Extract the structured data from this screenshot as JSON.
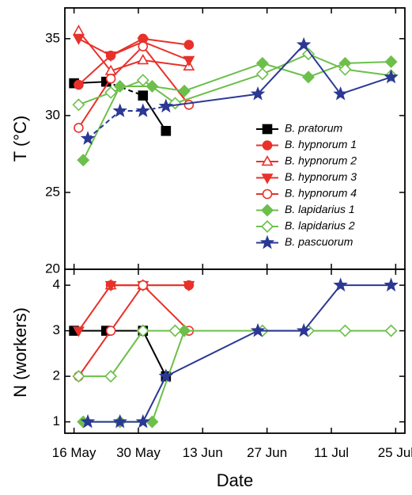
{
  "chart_data": {
    "type": "line",
    "xlabel": "Date",
    "x_ticks": [
      {
        "date": "2011-05-16",
        "label": "16 May"
      },
      {
        "date": "2011-05-30",
        "label": "30 May"
      },
      {
        "date": "2011-06-13",
        "label": "13 Jun"
      },
      {
        "date": "2011-06-27",
        "label": "27 Jun"
      },
      {
        "date": "2011-07-11",
        "label": "11 Jul"
      },
      {
        "date": "2011-07-25",
        "label": "25 Jul"
      }
    ],
    "xlim": [
      "2011-05-14",
      "2011-07-27"
    ],
    "panels": [
      {
        "id": "temperature",
        "ylabel": "T (°C)",
        "ylim": [
          20,
          37
        ],
        "yticks": [
          20,
          25,
          30,
          35
        ],
        "legend": "inside right",
        "series": [
          {
            "name": "B. pratorum",
            "color": "#000000",
            "marker": "square",
            "filled": true,
            "points": [
              [
                "2011-05-16",
                32.1,
                "solid"
              ],
              [
                "2011-05-23",
                32.2,
                "solid"
              ],
              [
                "2011-05-31",
                31.3,
                "dashed"
              ],
              [
                "2011-06-05",
                29.0,
                "solid"
              ]
            ]
          },
          {
            "name": "B. hypnorum 1",
            "color": "#e8312a",
            "marker": "circle",
            "filled": true,
            "points": [
              [
                "2011-05-17",
                32.0,
                "solid"
              ],
              [
                "2011-05-24",
                33.9,
                "solid"
              ],
              [
                "2011-05-31",
                35.0,
                "solid"
              ],
              [
                "2011-06-10",
                34.6,
                "solid"
              ]
            ]
          },
          {
            "name": "B. hypnorum 2",
            "color": "#e8312a",
            "marker": "triangle-up",
            "filled": false,
            "points": [
              [
                "2011-05-17",
                35.5,
                "dashed"
              ],
              [
                "2011-05-24",
                32.9,
                "solid"
              ],
              [
                "2011-05-31",
                33.6,
                "solid"
              ],
              [
                "2011-06-10",
                33.2,
                "solid"
              ]
            ]
          },
          {
            "name": "B. hypnorum 3",
            "color": "#e8312a",
            "marker": "triangle-down",
            "filled": true,
            "points": [
              [
                "2011-05-17",
                35.0,
                "dashed"
              ],
              [
                "2011-05-24",
                33.9,
                "solid"
              ],
              [
                "2011-05-31",
                34.8,
                "solid"
              ],
              [
                "2011-06-10",
                33.6,
                "solid"
              ]
            ]
          },
          {
            "name": "B. hypnorum 4",
            "color": "#e8312a",
            "marker": "circle",
            "filled": false,
            "points": [
              [
                "2011-05-17",
                29.2,
                "dashed"
              ],
              [
                "2011-05-24",
                32.4,
                "solid"
              ],
              [
                "2011-05-31",
                34.5,
                "solid"
              ],
              [
                "2011-06-10",
                30.7,
                "solid"
              ]
            ]
          },
          {
            "name": "B. lapidarius 1",
            "color": "#6dbf4b",
            "marker": "diamond",
            "filled": true,
            "points": [
              [
                "2011-05-18",
                27.1,
                "dashed"
              ],
              [
                "2011-05-26",
                31.9,
                "solid"
              ],
              [
                "2011-06-02",
                31.9,
                "solid"
              ],
              [
                "2011-06-09",
                31.6,
                "solid"
              ],
              [
                "2011-06-26",
                33.4,
                "solid"
              ],
              [
                "2011-07-06",
                32.5,
                "solid"
              ],
              [
                "2011-07-14",
                33.4,
                "solid"
              ],
              [
                "2011-07-24",
                33.5,
                "solid"
              ]
            ]
          },
          {
            "name": "B. lapidarius 2",
            "color": "#6dbf4b",
            "marker": "diamond",
            "filled": false,
            "points": [
              [
                "2011-05-17",
                30.7,
                "dashed"
              ],
              [
                "2011-05-24",
                31.5,
                "solid"
              ],
              [
                "2011-05-31",
                32.3,
                "solid"
              ],
              [
                "2011-06-07",
                30.8,
                "solid"
              ],
              [
                "2011-06-26",
                32.7,
                "solid"
              ],
              [
                "2011-07-06",
                34.0,
                "solid"
              ],
              [
                "2011-07-14",
                33.0,
                "solid"
              ],
              [
                "2011-07-24",
                32.6,
                "solid"
              ]
            ]
          },
          {
            "name": "B. pascuorum",
            "color": "#2b3894",
            "marker": "star",
            "filled": true,
            "points": [
              [
                "2011-05-19",
                28.5,
                "dashed"
              ],
              [
                "2011-05-26",
                30.3,
                "dashed"
              ],
              [
                "2011-05-31",
                30.3,
                "dashed"
              ],
              [
                "2011-06-05",
                30.6,
                "dashed"
              ],
              [
                "2011-06-25",
                31.4,
                "solid"
              ],
              [
                "2011-07-05",
                34.6,
                "solid"
              ],
              [
                "2011-07-13",
                31.4,
                "solid"
              ],
              [
                "2011-07-24",
                32.5,
                "solid"
              ]
            ]
          }
        ]
      },
      {
        "id": "workers",
        "ylabel": "N (workers)",
        "ylim": [
          0.75,
          4.35
        ],
        "yticks": [
          1,
          2,
          3,
          4
        ],
        "series": [
          {
            "name": "B. pratorum",
            "color": "#000000",
            "marker": "square",
            "filled": true,
            "points": [
              [
                "2011-05-16",
                3
              ],
              [
                "2011-05-23",
                3
              ],
              [
                "2011-05-31",
                3
              ],
              [
                "2011-06-05",
                2
              ]
            ]
          },
          {
            "name": "B. hypnorum 1",
            "color": "#e8312a",
            "marker": "circle",
            "filled": true,
            "points": [
              [
                "2011-05-24",
                4
              ],
              [
                "2011-05-31",
                4
              ],
              [
                "2011-06-10",
                4
              ]
            ]
          },
          {
            "name": "B. hypnorum 2",
            "color": "#e8312a",
            "marker": "triangle-up",
            "filled": false,
            "points": [
              [
                "2011-05-24",
                4
              ],
              [
                "2011-05-31",
                4
              ]
            ]
          },
          {
            "name": "B. hypnorum 3",
            "color": "#e8312a",
            "marker": "triangle-down",
            "filled": true,
            "points": [
              [
                "2011-05-17",
                3
              ],
              [
                "2011-05-24",
                4
              ],
              [
                "2011-05-31",
                4
              ],
              [
                "2011-06-10",
                4
              ]
            ]
          },
          {
            "name": "B. hypnorum 4",
            "color": "#e8312a",
            "marker": "circle",
            "filled": false,
            "points": [
              [
                "2011-05-17",
                2
              ],
              [
                "2011-05-24",
                3
              ],
              [
                "2011-05-31",
                4
              ],
              [
                "2011-06-10",
                3
              ]
            ]
          },
          {
            "name": "B. lapidarius 1",
            "color": "#6dbf4b",
            "marker": "diamond",
            "filled": true,
            "points": [
              [
                "2011-05-18",
                1
              ],
              [
                "2011-05-26",
                1
              ],
              [
                "2011-06-02",
                1
              ],
              [
                "2011-06-09",
                3
              ]
            ]
          },
          {
            "name": "B. lapidarius 2",
            "color": "#6dbf4b",
            "marker": "diamond",
            "filled": false,
            "points": [
              [
                "2011-05-17",
                2
              ],
              [
                "2011-05-24",
                2
              ],
              [
                "2011-05-31",
                3
              ],
              [
                "2011-06-07",
                3
              ],
              [
                "2011-06-26",
                3
              ],
              [
                "2011-07-06",
                3
              ],
              [
                "2011-07-14",
                3
              ],
              [
                "2011-07-24",
                3
              ]
            ]
          },
          {
            "name": "B. pascuorum",
            "color": "#2b3894",
            "marker": "star",
            "filled": true,
            "points": [
              [
                "2011-05-19",
                1
              ],
              [
                "2011-05-26",
                1
              ],
              [
                "2011-05-31",
                1
              ],
              [
                "2011-06-05",
                2
              ],
              [
                "2011-06-25",
                3
              ],
              [
                "2011-07-05",
                3
              ],
              [
                "2011-07-13",
                4
              ],
              [
                "2011-07-24",
                4
              ]
            ]
          }
        ]
      }
    ]
  }
}
